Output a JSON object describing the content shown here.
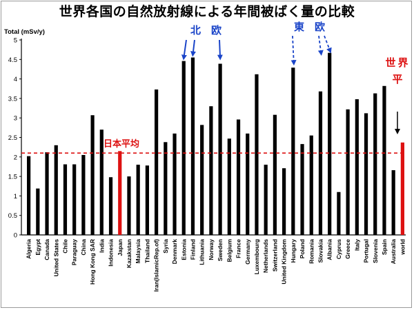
{
  "title": "世界各国の自然放射線による年間被ばく量の比較",
  "chart_data": {
    "type": "bar",
    "ylabel": "Total (mSv/y)",
    "ylim": [
      0,
      5
    ],
    "yticks": [
      "0",
      "0.5",
      "1",
      "1.5",
      "2",
      "2.5",
      "3",
      "3.5",
      "4",
      "4.5",
      "5"
    ],
    "grid": false,
    "categories": [
      "Algeria",
      "Egypt",
      "Canada",
      "United States",
      "Chile",
      "Paraguay",
      "China",
      "Hong Kong SAR",
      "India",
      "Indonesia",
      "Japan",
      "Kazakstan",
      "Malaysia",
      "Thailand",
      "Iran(IslamicRep.of)",
      "Syria",
      "Denmark",
      "Estonia",
      "Finland",
      "Lithuania",
      "Norway",
      "Sweden",
      "Belgium",
      "France",
      "Germany",
      "Luxembourg",
      "Netherlands",
      "Switzerland",
      "United Kingdom",
      "Hungary",
      "Poland",
      "Romania",
      "Slovakia",
      "Albania",
      "Cyprus",
      "Greece",
      "Italy",
      "Portugal",
      "Slovenia",
      "Spain",
      "Australia",
      "world"
    ],
    "values": [
      2.02,
      1.19,
      2.12,
      2.3,
      1.81,
      1.81,
      2.05,
      3.07,
      2.7,
      1.48,
      2.15,
      1.5,
      1.8,
      1.78,
      3.73,
      2.38,
      2.6,
      4.46,
      4.55,
      2.82,
      3.3,
      4.39,
      2.47,
      2.96,
      2.6,
      4.12,
      1.8,
      3.08,
      1.71,
      4.29,
      2.33,
      2.55,
      3.68,
      4.67,
      1.1,
      3.22,
      3.48,
      3.12,
      3.63,
      3.82,
      1.66,
      2.37
    ],
    "highlighted": [
      "Japan",
      "world"
    ],
    "reference_line": {
      "label": "日本平均",
      "value": 2.1
    },
    "annotations": {
      "northern_europe": "北　欧",
      "eastern_europe": "東　欧",
      "world_average": "世界平均"
    },
    "colors": {
      "bar": "#000000",
      "highlight": "#dd1111",
      "arrow": "#1a44c8",
      "reference": "#dd1111"
    }
  }
}
